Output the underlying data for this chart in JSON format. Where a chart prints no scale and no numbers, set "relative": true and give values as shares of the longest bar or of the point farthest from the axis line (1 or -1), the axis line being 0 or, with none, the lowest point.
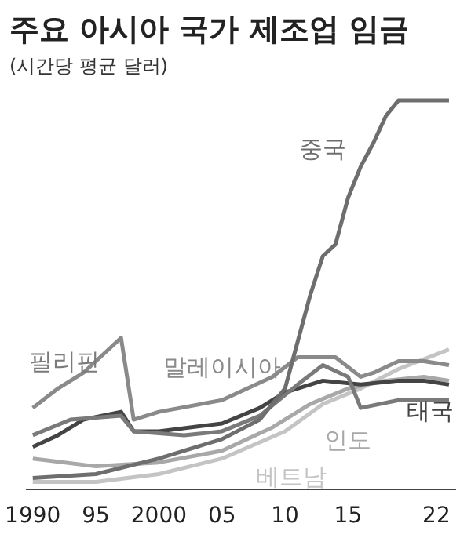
{
  "chart_data": {
    "type": "line",
    "title": "주요 아시아 국가 제조업 임금",
    "subtitle": "(시간당 평균 달러)",
    "relative": true,
    "xlim": [
      1989.5,
      2023.5
    ],
    "xticks": [
      1990,
      {
        "value": 1995,
        "label": "95"
      },
      2000,
      {
        "value": 2005,
        "label": "05"
      },
      {
        "value": 2010,
        "label": "10"
      },
      {
        "value": 2015,
        "label": "15"
      },
      {
        "value": 2022,
        "label": "22"
      }
    ],
    "legend": false,
    "marker": "none",
    "line_style": "solid",
    "series": [
      {
        "name": "중국",
        "color": "#6e6e6e",
        "x": [
          1990,
          1995,
          2000,
          2005,
          2008,
          2010,
          2011,
          2012,
          2013,
          2014,
          2015,
          2016,
          2017,
          2018,
          2019,
          2021,
          2023
        ],
        "values": [
          0.03,
          0.04,
          0.08,
          0.13,
          0.18,
          0.26,
          0.38,
          0.5,
          0.6,
          0.63,
          0.75,
          0.83,
          0.89,
          0.96,
          1.0,
          1.0,
          1.0
        ]
      },
      {
        "name": "필리핀",
        "color": "#7a7a7a",
        "x": [
          1990,
          1993,
          1997,
          1998,
          2002,
          2005,
          2008,
          2011,
          2013,
          2015,
          2016,
          2019,
          2023
        ],
        "values": [
          0.14,
          0.18,
          0.19,
          0.15,
          0.14,
          0.15,
          0.19,
          0.27,
          0.32,
          0.29,
          0.21,
          0.23,
          0.23
        ]
      },
      {
        "name": "말레이시아",
        "color": "#8a8a8a",
        "x": [
          1990,
          1992,
          1994,
          1997,
          1998,
          2000,
          2005,
          2009,
          2011,
          2014,
          2016,
          2017,
          2019,
          2021,
          2023
        ],
        "values": [
          0.21,
          0.26,
          0.3,
          0.39,
          0.18,
          0.2,
          0.23,
          0.29,
          0.34,
          0.34,
          0.29,
          0.3,
          0.33,
          0.33,
          0.32
        ]
      },
      {
        "name": "태국",
        "color": "#444444",
        "x": [
          1990,
          1992,
          1994,
          1997,
          1998,
          2000,
          2005,
          2008,
          2010,
          2013,
          2016,
          2019,
          2021,
          2023
        ],
        "values": [
          0.11,
          0.14,
          0.18,
          0.2,
          0.15,
          0.15,
          0.17,
          0.21,
          0.25,
          0.28,
          0.27,
          0.28,
          0.28,
          0.27
        ]
      },
      {
        "name": "인도",
        "color": "#a8a8a8",
        "x": [
          1990,
          1995,
          2000,
          2005,
          2009,
          2012,
          2015,
          2018,
          2021,
          2023
        ],
        "values": [
          0.08,
          0.06,
          0.07,
          0.1,
          0.16,
          0.22,
          0.26,
          0.28,
          0.29,
          0.28
        ]
      },
      {
        "name": "베트남",
        "color": "#c4c4c4",
        "x": [
          1990,
          1995,
          2000,
          2005,
          2010,
          2013,
          2016,
          2019,
          2023
        ],
        "values": [
          0.02,
          0.02,
          0.04,
          0.08,
          0.15,
          0.22,
          0.26,
          0.31,
          0.36
        ]
      }
    ]
  }
}
